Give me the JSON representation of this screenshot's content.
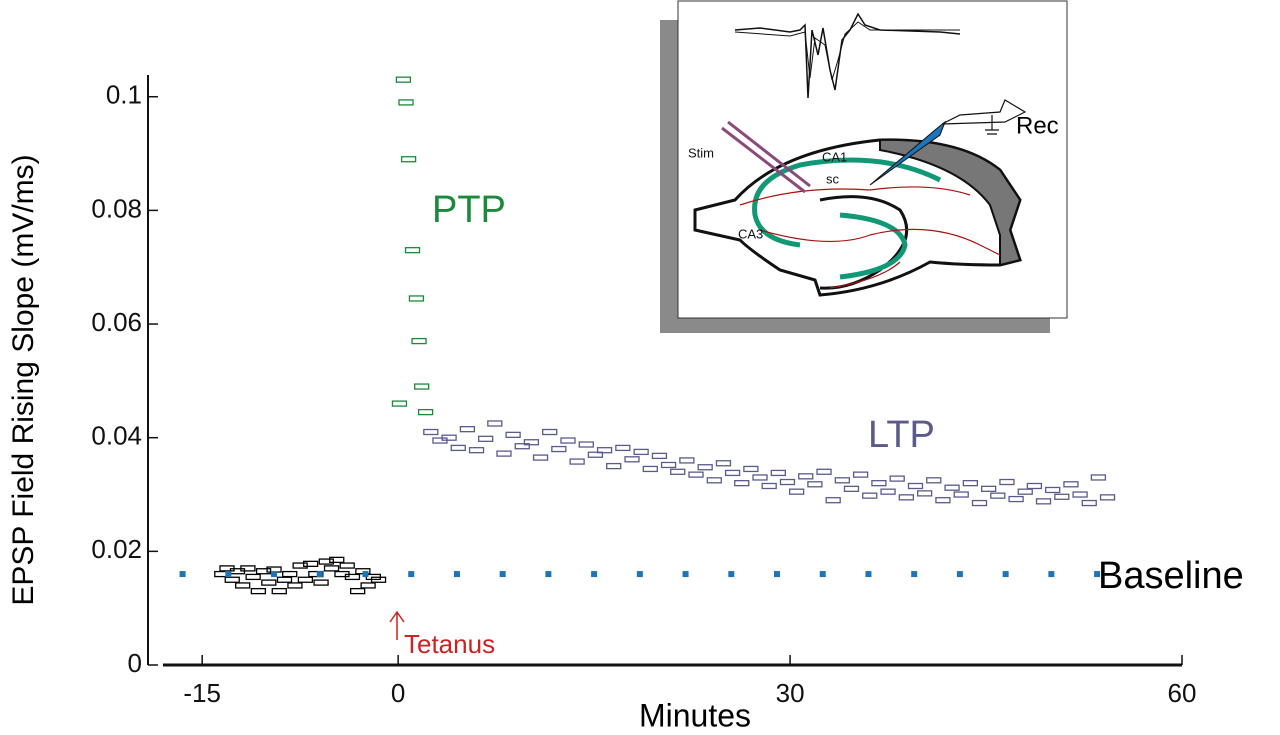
{
  "chart_data": {
    "type": "scatter",
    "x_label": "Minutes",
    "y_label": "EPSP Field Rising Slope (mV/ms)",
    "annotations": [
      "PTP",
      "LTP",
      "Baseline",
      "Tetanus"
    ],
    "xlim": [
      -18,
      60
    ],
    "xticks": [
      -15,
      0,
      30,
      60
    ],
    "ylim": [
      0,
      0.104
    ],
    "yticks": [
      0,
      0.02,
      0.04,
      0.06,
      0.08,
      0.1
    ],
    "series": [
      {
        "color": "#000000",
        "marker": "rect",
        "x": [
          -13.5,
          -13.1,
          -12.7,
          -12.3,
          -11.9,
          -11.5,
          -11.1,
          -10.7,
          -10.3,
          -9.9,
          -9.5,
          -9.1,
          -8.7,
          -8.3,
          -7.9,
          -7.5,
          -7.1,
          -6.7,
          -6.3,
          -5.9,
          -5.5,
          -5.1,
          -4.7,
          -4.3,
          -3.9,
          -3.5,
          -3.1,
          -2.7,
          -2.3,
          -1.9,
          -1.5
        ],
        "values": [
          0.016,
          0.017,
          0.015,
          0.0165,
          0.014,
          0.017,
          0.0155,
          0.013,
          0.0165,
          0.0145,
          0.0168,
          0.013,
          0.015,
          0.016,
          0.014,
          0.0175,
          0.015,
          0.0178,
          0.016,
          0.0145,
          0.0182,
          0.017,
          0.0185,
          0.016,
          0.0175,
          0.0155,
          0.013,
          0.0165,
          0.014,
          0.0155,
          0.015
        ]
      },
      {
        "color": "#1a8a3a",
        "marker": "rect",
        "x": [
          0.1,
          0.4,
          0.6,
          0.8,
          1.1,
          1.4,
          1.6,
          1.8,
          2.1
        ],
        "values": [
          0.046,
          0.103,
          0.099,
          0.089,
          0.073,
          0.0645,
          0.057,
          0.049,
          0.0445
        ]
      },
      {
        "color": "#5a5a8c",
        "marker": "rect",
        "x": [
          2.5,
          3.2,
          3.9,
          4.6,
          5.3,
          6,
          6.7,
          7.4,
          8.1,
          8.8,
          9.5,
          10.2,
          10.9,
          11.6,
          12.3,
          13,
          13.7,
          14.4,
          15.1,
          15.8,
          16.5,
          17.2,
          17.9,
          18.6,
          19.3,
          20,
          20.7,
          21.4,
          22.1,
          22.8,
          23.5,
          24.2,
          24.9,
          25.6,
          26.3,
          27,
          27.7,
          28.4,
          29.1,
          29.8,
          30.5,
          31.2,
          31.9,
          32.6,
          33.3,
          34,
          34.7,
          35.4,
          36.1,
          36.8,
          37.5,
          38.2,
          38.9,
          39.6,
          40.3,
          41,
          41.7,
          42.4,
          43.1,
          43.8,
          44.5,
          45.2,
          45.9,
          46.6,
          47.3,
          48,
          48.7,
          49.4,
          50.1,
          50.8,
          51.5,
          52.2,
          52.9,
          53.6,
          54.3
        ],
        "values": [
          0.041,
          0.0395,
          0.04,
          0.0382,
          0.0415,
          0.0378,
          0.0398,
          0.0425,
          0.0372,
          0.0405,
          0.0385,
          0.0392,
          0.0365,
          0.041,
          0.038,
          0.0395,
          0.0358,
          0.0388,
          0.037,
          0.0378,
          0.035,
          0.0382,
          0.0362,
          0.0375,
          0.0345,
          0.0368,
          0.0352,
          0.034,
          0.036,
          0.0335,
          0.0348,
          0.0325,
          0.0355,
          0.0338,
          0.032,
          0.0345,
          0.033,
          0.0315,
          0.0338,
          0.0322,
          0.0305,
          0.0332,
          0.0318,
          0.034,
          0.029,
          0.0325,
          0.031,
          0.0335,
          0.0298,
          0.032,
          0.0305,
          0.0328,
          0.0295,
          0.0315,
          0.0302,
          0.0325,
          0.029,
          0.0312,
          0.03,
          0.032,
          0.0285,
          0.031,
          0.0298,
          0.0322,
          0.0292,
          0.0305,
          0.0315,
          0.0288,
          0.0308,
          0.0296,
          0.0318,
          0.03,
          0.0285,
          0.033,
          0.0295
        ]
      },
      {
        "color": "#1b75bb",
        "marker": "square",
        "x": [
          -16.5,
          -13,
          -9.5,
          -6,
          -2.5,
          1,
          4.5,
          8,
          11.5,
          15,
          18.5,
          22,
          25.5,
          29,
          32.5,
          36,
          39.5,
          43,
          46.5,
          50,
          53.5
        ],
        "values": [
          0.016,
          0.016,
          0.016,
          0.016,
          0.016,
          0.016,
          0.016,
          0.016,
          0.016,
          0.016,
          0.016,
          0.016,
          0.016,
          0.016,
          0.016,
          0.016,
          0.016,
          0.016,
          0.016,
          0.016,
          0.016
        ]
      }
    ]
  },
  "inset": {
    "stim": "Stim",
    "ca1": "CA1",
    "sc": "sc",
    "ca3": "CA3",
    "rec": "Rec"
  }
}
